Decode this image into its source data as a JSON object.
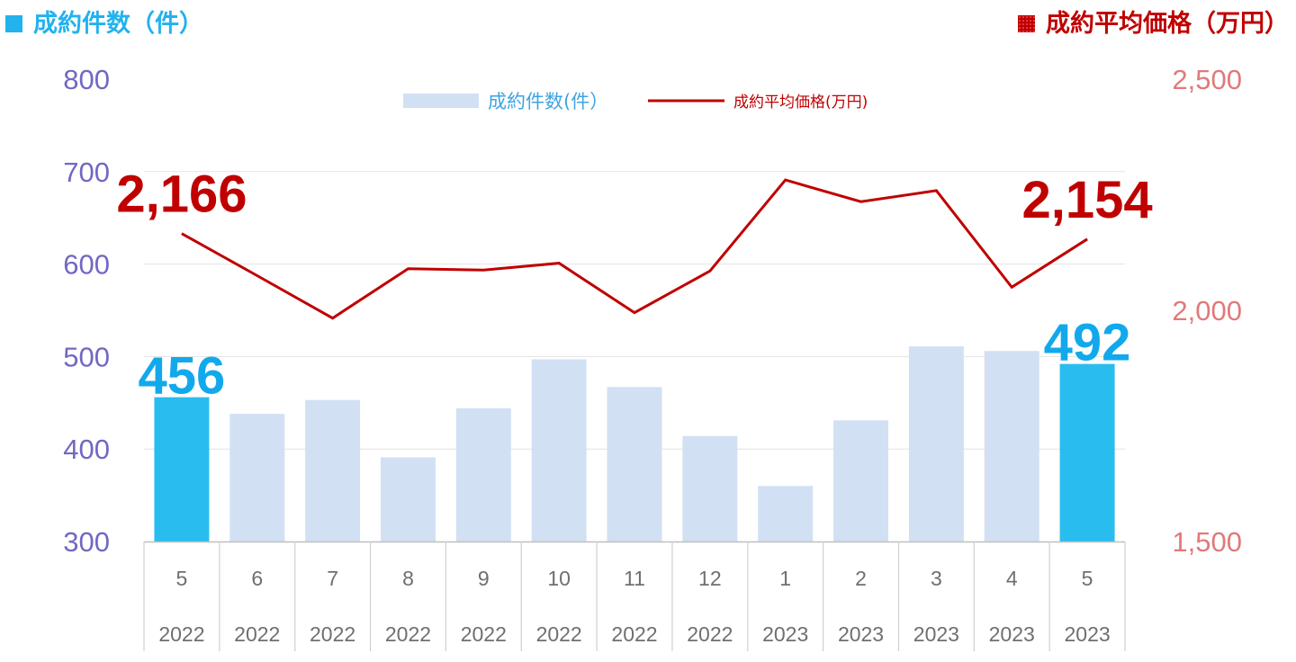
{
  "header": {
    "left_title": "成約件数（件）",
    "right_title": "成約平均価格（万円）"
  },
  "colors": {
    "bar": "#d2e0f4",
    "bar_highlight": "#29bdef",
    "line": "#c00000",
    "left_axis": "#7068c4",
    "right_axis": "#e07a7a",
    "callout_bar": "#12a9ec",
    "callout_line": "#c00000",
    "left_header": "#22b2ee",
    "right_header": "#c00000"
  },
  "chart_data": {
    "type": "bar",
    "categories": [
      {
        "month": "5",
        "year": "2022"
      },
      {
        "month": "6",
        "year": "2022"
      },
      {
        "month": "7",
        "year": "2022"
      },
      {
        "month": "8",
        "year": "2022"
      },
      {
        "month": "9",
        "year": "2022"
      },
      {
        "month": "10",
        "year": "2022"
      },
      {
        "month": "11",
        "year": "2022"
      },
      {
        "month": "12",
        "year": "2022"
      },
      {
        "month": "1",
        "year": "2023"
      },
      {
        "month": "2",
        "year": "2023"
      },
      {
        "month": "3",
        "year": "2023"
      },
      {
        "month": "4",
        "year": "2023"
      },
      {
        "month": "5",
        "year": "2023"
      }
    ],
    "series": [
      {
        "name": "成約件数(件）",
        "type": "bar",
        "axis": "left",
        "values": [
          456,
          438,
          453,
          391,
          444,
          497,
          467,
          414,
          360,
          431,
          511,
          506,
          492
        ],
        "highlight": [
          true,
          false,
          false,
          false,
          false,
          false,
          false,
          false,
          false,
          false,
          false,
          false,
          true
        ]
      },
      {
        "name": "成約平均価格(万円)",
        "type": "line",
        "axis": "right",
        "values": [
          2166,
          2075,
          1983,
          2090,
          2087,
          2102,
          1995,
          2085,
          2282,
          2235,
          2259,
          2050,
          2154
        ]
      }
    ],
    "left_axis": {
      "min": 300,
      "max": 800,
      "ticks": [
        "300",
        "400",
        "500",
        "600",
        "700",
        "800"
      ]
    },
    "right_axis": {
      "min": 1500,
      "max": 2500,
      "ticks": [
        "1,500",
        "2,000",
        "2,500"
      ]
    },
    "callouts": [
      {
        "series": 1,
        "index": 0,
        "label": "2,166"
      },
      {
        "series": 1,
        "index": 12,
        "label": "2,154"
      },
      {
        "series": 0,
        "index": 0,
        "label": "456"
      },
      {
        "series": 0,
        "index": 12,
        "label": "492"
      }
    ],
    "legend": {
      "position": "top-center"
    },
    "grid": true
  }
}
